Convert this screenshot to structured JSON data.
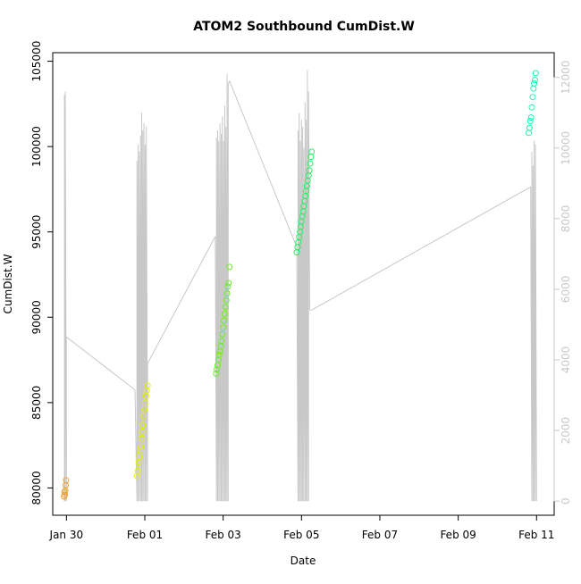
{
  "chart_data": {
    "type": "scatter",
    "title": "ATOM2 Southbound CumDist.W",
    "xlabel": "Date",
    "ylabel": "CumDist.W",
    "x_ticks": [
      "Jan 30",
      "Feb 01",
      "Feb 03",
      "Feb 05",
      "Feb 07",
      "Feb 09",
      "Feb 11"
    ],
    "x_tick_values": [
      0,
      2,
      4,
      6,
      8,
      10,
      12
    ],
    "xlim": [
      -0.35,
      12.45
    ],
    "ylim": [
      78400,
      105500
    ],
    "y_ticks": [
      80000,
      85000,
      90000,
      95000,
      100000,
      105000
    ],
    "y2lim": [
      -400,
      12700
    ],
    "y2_ticks": [
      0,
      2000,
      4000,
      6000,
      8000,
      10000,
      12000
    ],
    "right_axis_color": "#c8c8c8",
    "line_color": "#c8c8c8",
    "series": [
      {
        "name": "Jan 30",
        "color": "#f0a030",
        "points": [
          [
            -0.06,
            79500
          ],
          [
            -0.05,
            79750
          ],
          [
            -0.04,
            79600
          ],
          [
            -0.03,
            79850
          ],
          [
            -0.02,
            80150
          ],
          [
            -0.01,
            80450
          ]
        ]
      },
      {
        "name": "Feb 01",
        "color": "#e4f000",
        "points": [
          [
            1.8,
            80700
          ],
          [
            1.82,
            81000
          ],
          [
            1.84,
            81500
          ],
          [
            1.86,
            81800
          ],
          [
            1.88,
            82200
          ],
          [
            1.9,
            82400
          ],
          [
            1.92,
            82900
          ],
          [
            1.93,
            83300
          ],
          [
            1.95,
            83700
          ],
          [
            1.97,
            84200
          ],
          [
            1.99,
            84600
          ],
          [
            2.01,
            85000
          ],
          [
            2.03,
            85400
          ],
          [
            2.05,
            85700
          ],
          [
            2.07,
            86000
          ]
        ]
      },
      {
        "name": "Feb 03",
        "color": "#66f020",
        "points": [
          [
            3.82,
            86700
          ],
          [
            3.84,
            86950
          ],
          [
            3.86,
            87200
          ],
          [
            3.88,
            87500
          ],
          [
            3.9,
            87800
          ],
          [
            3.92,
            88000
          ],
          [
            3.94,
            88300
          ],
          [
            3.96,
            88600
          ],
          [
            3.98,
            89000
          ],
          [
            4.0,
            89400
          ],
          [
            4.02,
            89800
          ],
          [
            4.04,
            90200
          ],
          [
            4.06,
            90600
          ],
          [
            4.08,
            91000
          ],
          [
            4.1,
            91400
          ],
          [
            4.12,
            91800
          ],
          [
            4.14,
            92000
          ],
          [
            4.16,
            92950
          ]
        ]
      },
      {
        "name": "Feb 05",
        "color": "#22f060",
        "points": [
          [
            5.88,
            93800
          ],
          [
            5.9,
            94100
          ],
          [
            5.92,
            94400
          ],
          [
            5.94,
            94700
          ],
          [
            5.96,
            95000
          ],
          [
            5.98,
            95300
          ],
          [
            6.0,
            95600
          ],
          [
            6.02,
            95900
          ],
          [
            6.04,
            96200
          ],
          [
            6.06,
            96500
          ],
          [
            6.08,
            96800
          ],
          [
            6.1,
            97100
          ],
          [
            6.12,
            97400
          ],
          [
            6.14,
            97700
          ],
          [
            6.16,
            98000
          ],
          [
            6.18,
            98300
          ],
          [
            6.2,
            98600
          ],
          [
            6.22,
            99000
          ],
          [
            6.24,
            99400
          ],
          [
            6.26,
            99700
          ]
        ]
      },
      {
        "name": "Feb 11",
        "color": "#20f0b0",
        "points": [
          [
            11.8,
            100800
          ],
          [
            11.82,
            101100
          ],
          [
            11.84,
            101500
          ],
          [
            11.86,
            101700
          ],
          [
            11.88,
            102300
          ],
          [
            11.9,
            102900
          ],
          [
            11.92,
            103400
          ],
          [
            11.94,
            103700
          ],
          [
            11.96,
            103900
          ],
          [
            11.98,
            104300
          ]
        ]
      }
    ],
    "line_segments": [
      {
        "x": [
          -0.05,
          -0.05,
          -0.03,
          -0.03,
          0.0,
          0.0
        ],
        "y2": [
          0,
          11500,
          0,
          11600,
          0,
          4650
        ]
      },
      {
        "x": [
          0.0,
          1.75
        ],
        "y2": [
          4650,
          3150
        ]
      },
      {
        "x": [
          1.75,
          1.8,
          1.8,
          1.83,
          1.83,
          1.86,
          1.86,
          1.89,
          1.89,
          1.92,
          1.92,
          1.95,
          1.95,
          1.98,
          1.98,
          2.01,
          2.01,
          2.04,
          2.04,
          2.07,
          2.07
        ],
        "y2": [
          3150,
          0,
          9650,
          0,
          10100,
          0,
          9900,
          0,
          10350,
          0,
          11000,
          0,
          10500,
          0,
          10700,
          0,
          10100,
          0,
          10600,
          0,
          3900
        ]
      },
      {
        "x": [
          2.07,
          3.8
        ],
        "y2": [
          3900,
          7500
        ]
      },
      {
        "x": [
          3.8,
          3.83,
          3.83,
          3.86,
          3.86,
          3.89,
          3.89,
          3.92,
          3.92,
          3.95,
          3.95,
          3.98,
          3.98,
          4.01,
          4.01,
          4.04,
          4.04,
          4.07,
          4.07,
          4.1,
          4.1,
          4.13,
          4.13,
          4.16
        ],
        "y2": [
          7500,
          0,
          10300,
          0,
          10500,
          0,
          10200,
          0,
          10700,
          0,
          10400,
          0,
          10900,
          0,
          10200,
          0,
          11200,
          0,
          10600,
          0,
          12100,
          0,
          11800,
          11900
        ]
      },
      {
        "x": [
          4.16,
          5.88
        ],
        "y2": [
          11900,
          7200
        ]
      },
      {
        "x": [
          5.88,
          5.91,
          5.91,
          5.94,
          5.94,
          5.97,
          5.97,
          6.0,
          6.0,
          6.03,
          6.03,
          6.06,
          6.06,
          6.09,
          6.09,
          6.12,
          6.12,
          6.15,
          6.15,
          6.18,
          6.18,
          6.21,
          6.21,
          6.24
        ],
        "y2": [
          7200,
          0,
          10500,
          0,
          11000,
          0,
          10200,
          0,
          10800,
          0,
          10600,
          0,
          10000,
          0,
          11300,
          0,
          10800,
          0,
          12200,
          0,
          11600,
          5400
        ]
      },
      {
        "x": [
          6.24,
          11.85
        ],
        "y2": [
          5400,
          8900
        ]
      },
      {
        "x": [
          11.85,
          11.88,
          11.88,
          11.91,
          11.91,
          11.94,
          11.94,
          11.97,
          11.97,
          12.0
        ],
        "y2": [
          8900,
          0,
          9900,
          0,
          9500,
          0,
          10200,
          0,
          10100,
          0
        ]
      }
    ]
  }
}
